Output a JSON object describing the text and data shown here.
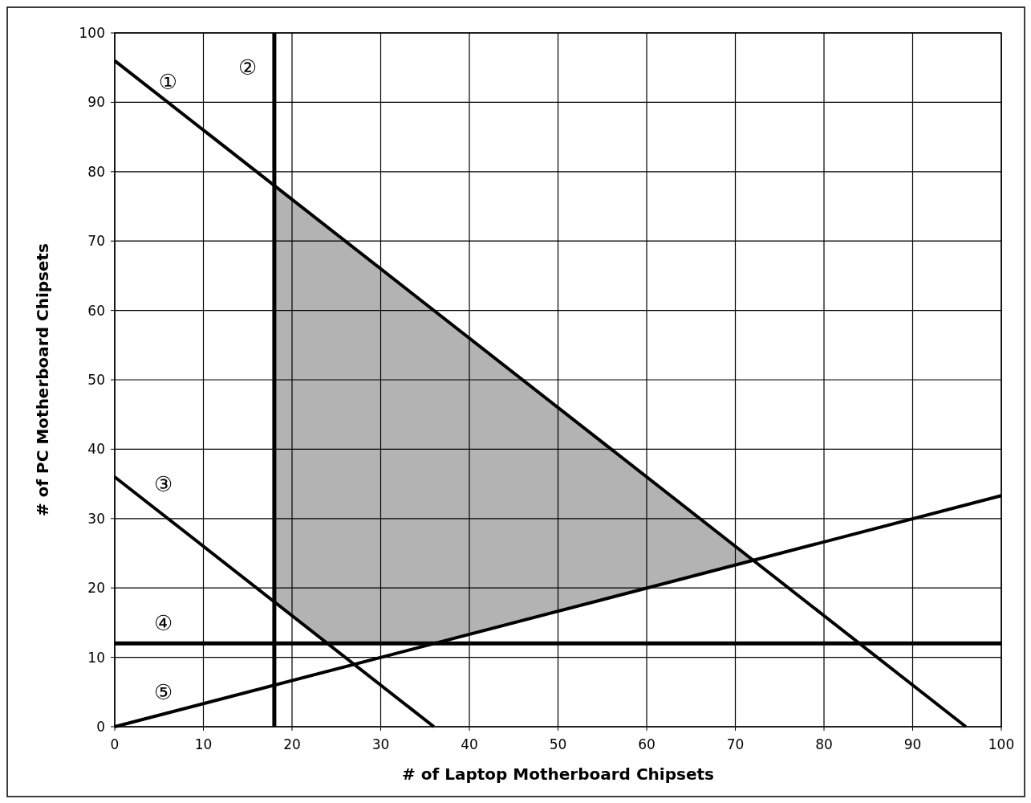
{
  "chart_data": {
    "type": "line",
    "xlabel": "# of Laptop Motherboard Chipsets",
    "ylabel": "# of PC Motherboard Chipsets",
    "xlim": [
      0,
      100
    ],
    "ylim": [
      0,
      100
    ],
    "xticks": [
      0,
      10,
      20,
      30,
      40,
      50,
      60,
      70,
      80,
      90,
      100
    ],
    "yticks": [
      0,
      10,
      20,
      30,
      40,
      50,
      60,
      70,
      80,
      90,
      100
    ],
    "grid": true,
    "marker": "none",
    "line_style": "solid",
    "series": [
      {
        "type": "area",
        "color": "#b3b3b3",
        "x": [
          18,
          18,
          24,
          36,
          72
        ],
        "values": [
          78,
          18,
          12,
          12,
          24
        ]
      },
      {
        "color": "#000000",
        "x": [
          0,
          96
        ],
        "values": [
          96,
          0
        ]
      },
      {
        "color": "#000000",
        "x": [
          0,
          36
        ],
        "values": [
          36,
          0
        ]
      },
      {
        "color": "#000000",
        "x": [
          0,
          100
        ],
        "values": [
          0,
          33.3
        ]
      }
    ],
    "ref_lines": [
      {
        "axis": "x",
        "value": 18,
        "color": "#000000"
      },
      {
        "axis": "y",
        "value": 12,
        "color": "#000000"
      }
    ],
    "annotations": [
      "①",
      "②",
      "③",
      "④",
      "⑤"
    ]
  }
}
